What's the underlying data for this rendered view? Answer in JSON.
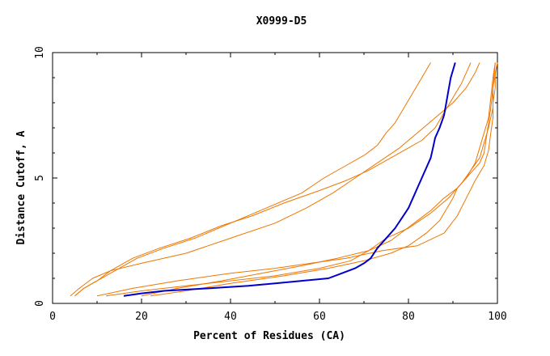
{
  "chart_data": {
    "type": "line",
    "title": "X0999-D5",
    "xlabel": "Percent of Residues (CA)",
    "ylabel": "Distance Cutoff, A",
    "xlim": [
      0,
      100
    ],
    "ylim": [
      0,
      10
    ],
    "x_ticks": [
      0,
      20,
      40,
      60,
      80,
      100
    ],
    "y_ticks": [
      0,
      5,
      10
    ],
    "grid": false,
    "colors": {
      "highlight": "#0000cc",
      "others": "#ee7600"
    },
    "series": [
      {
        "highlight": true,
        "points": [
          [
            16,
            0.3
          ],
          [
            20,
            0.4
          ],
          [
            25,
            0.5
          ],
          [
            35,
            0.6
          ],
          [
            44,
            0.7
          ],
          [
            50,
            0.8
          ],
          [
            56,
            0.9
          ],
          [
            62,
            1.0
          ],
          [
            65,
            1.2
          ],
          [
            68,
            1.4
          ],
          [
            70,
            1.6
          ],
          [
            71.5,
            1.8
          ],
          [
            73,
            2.2
          ],
          [
            75,
            2.6
          ],
          [
            77,
            3.0
          ],
          [
            78.5,
            3.4
          ],
          [
            80,
            3.8
          ],
          [
            81,
            4.2
          ],
          [
            82,
            4.6
          ],
          [
            83,
            5.0
          ],
          [
            84,
            5.4
          ],
          [
            85,
            5.8
          ],
          [
            85.5,
            6.2
          ],
          [
            86,
            6.6
          ],
          [
            87,
            7.0
          ],
          [
            88,
            7.5
          ],
          [
            88.5,
            8.0
          ],
          [
            89,
            8.5
          ],
          [
            89.5,
            9.0
          ],
          [
            90.5,
            9.6
          ]
        ]
      },
      {
        "points": [
          [
            4,
            0.3
          ],
          [
            6,
            0.6
          ],
          [
            9,
            1.0
          ],
          [
            13,
            1.3
          ],
          [
            20,
            1.6
          ],
          [
            30,
            2.0
          ],
          [
            40,
            2.6
          ],
          [
            50,
            3.2
          ],
          [
            57,
            3.8
          ],
          [
            63,
            4.4
          ],
          [
            68,
            5.0
          ],
          [
            73,
            5.6
          ],
          [
            78,
            6.2
          ],
          [
            82,
            6.8
          ],
          [
            86,
            7.4
          ],
          [
            90,
            8.0
          ],
          [
            93,
            8.6
          ],
          [
            95,
            9.2
          ],
          [
            96,
            9.6
          ]
        ]
      },
      {
        "points": [
          [
            5,
            0.3
          ],
          [
            7,
            0.6
          ],
          [
            10,
            0.9
          ],
          [
            14,
            1.3
          ],
          [
            19,
            1.8
          ],
          [
            25,
            2.2
          ],
          [
            32,
            2.6
          ],
          [
            40,
            3.2
          ],
          [
            48,
            3.8
          ],
          [
            56,
            4.4
          ],
          [
            61,
            5.0
          ],
          [
            66,
            5.5
          ],
          [
            70,
            5.9
          ],
          [
            73,
            6.3
          ],
          [
            75,
            6.8
          ],
          [
            77,
            7.2
          ],
          [
            79,
            7.8
          ],
          [
            81,
            8.4
          ],
          [
            83,
            9.0
          ],
          [
            85,
            9.6
          ]
        ]
      },
      {
        "points": [
          [
            5,
            0.3
          ],
          [
            7,
            0.6
          ],
          [
            10,
            0.9
          ],
          [
            13,
            1.3
          ],
          [
            18,
            1.8
          ],
          [
            24,
            2.2
          ],
          [
            31,
            2.6
          ],
          [
            38,
            3.1
          ],
          [
            45,
            3.5
          ],
          [
            52,
            4.0
          ],
          [
            60,
            4.5
          ],
          [
            66,
            4.9
          ],
          [
            71,
            5.3
          ],
          [
            75,
            5.7
          ],
          [
            79,
            6.1
          ],
          [
            83,
            6.5
          ],
          [
            86,
            7.0
          ],
          [
            88,
            7.6
          ],
          [
            90,
            8.2
          ],
          [
            92,
            8.8
          ],
          [
            94,
            9.6
          ]
        ]
      },
      {
        "points": [
          [
            12,
            0.3
          ],
          [
            20,
            0.5
          ],
          [
            30,
            0.7
          ],
          [
            40,
            0.9
          ],
          [
            50,
            1.1
          ],
          [
            60,
            1.4
          ],
          [
            67,
            1.7
          ],
          [
            71,
            2.1
          ],
          [
            75,
            2.6
          ],
          [
            80,
            3.0
          ],
          [
            85,
            3.6
          ],
          [
            89,
            4.2
          ],
          [
            92,
            4.8
          ],
          [
            94,
            5.3
          ],
          [
            96,
            5.8
          ],
          [
            97,
            6.4
          ],
          [
            98,
            7.0
          ],
          [
            99,
            7.8
          ],
          [
            99,
            8.6
          ],
          [
            100,
            9.6
          ]
        ]
      },
      {
        "points": [
          [
            22,
            0.3
          ],
          [
            30,
            0.5
          ],
          [
            40,
            0.8
          ],
          [
            52,
            1.1
          ],
          [
            62,
            1.4
          ],
          [
            70,
            1.7
          ],
          [
            76,
            2.0
          ],
          [
            80,
            2.3
          ],
          [
            84,
            2.8
          ],
          [
            87,
            3.3
          ],
          [
            89,
            3.9
          ],
          [
            90,
            4.2
          ],
          [
            91,
            4.6
          ],
          [
            93,
            5.0
          ],
          [
            95,
            5.6
          ],
          [
            96,
            6.2
          ],
          [
            97,
            6.8
          ],
          [
            98,
            7.4
          ],
          [
            98.5,
            8.2
          ],
          [
            99,
            9.0
          ],
          [
            99.5,
            9.6
          ]
        ]
      },
      {
        "points": [
          [
            20,
            0.3
          ],
          [
            28,
            0.6
          ],
          [
            38,
            0.9
          ],
          [
            47,
            1.2
          ],
          [
            56,
            1.5
          ],
          [
            64,
            1.8
          ],
          [
            71,
            2.1
          ],
          [
            76,
            2.5
          ],
          [
            79,
            2.9
          ],
          [
            82,
            3.3
          ],
          [
            85,
            3.7
          ],
          [
            88,
            4.2
          ],
          [
            91,
            4.6
          ],
          [
            94,
            5.2
          ],
          [
            96,
            5.6
          ],
          [
            97,
            6.0
          ],
          [
            97.5,
            6.6
          ],
          [
            98,
            7.2
          ],
          [
            98.5,
            7.8
          ],
          [
            99,
            8.6
          ],
          [
            99.5,
            9.6
          ]
        ]
      },
      {
        "points": [
          [
            10,
            0.3
          ],
          [
            18,
            0.6
          ],
          [
            28,
            0.9
          ],
          [
            40,
            1.2
          ],
          [
            50,
            1.4
          ],
          [
            58,
            1.6
          ],
          [
            66,
            1.8
          ],
          [
            74,
            2.1
          ],
          [
            82,
            2.3
          ],
          [
            88,
            2.8
          ],
          [
            91,
            3.5
          ],
          [
            93,
            4.2
          ],
          [
            95,
            4.9
          ],
          [
            97,
            5.5
          ],
          [
            98,
            6.1
          ],
          [
            98.5,
            6.8
          ],
          [
            99,
            7.4
          ],
          [
            99,
            8.0
          ],
          [
            99.5,
            8.6
          ],
          [
            99.5,
            9.2
          ],
          [
            100,
            9.6
          ]
        ]
      }
    ]
  }
}
